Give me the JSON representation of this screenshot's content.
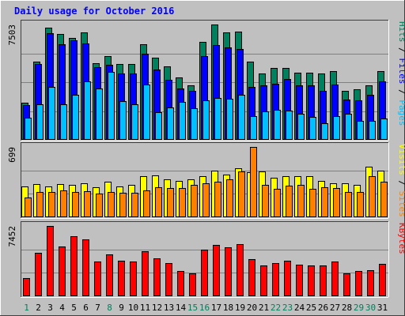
{
  "chart_data": {
    "type": "bar",
    "title": "Daily usage for October 2016",
    "categories": [
      "1",
      "2",
      "3",
      "4",
      "5",
      "6",
      "7",
      "8",
      "9",
      "10",
      "11",
      "12",
      "13",
      "14",
      "15",
      "16",
      "17",
      "18",
      "19",
      "20",
      "21",
      "22",
      "23",
      "24",
      "25",
      "26",
      "27",
      "28",
      "29",
      "30",
      "31"
    ],
    "weekend_days": [
      "1",
      "8",
      "15",
      "16",
      "22",
      "23",
      "29",
      "30"
    ],
    "panels": [
      {
        "name": "hits-files-pages",
        "legend": [
          {
            "label": "Pages",
            "color": "#00C0FF"
          },
          {
            "label": "Files",
            "color": "#0000FF"
          },
          {
            "label": "Hits",
            "color": "#00805C"
          }
        ],
        "legend_separator": " / ",
        "max_label": "7503",
        "max_value": 7503,
        "series": [
          {
            "name": "Hits",
            "color": "#00805C",
            "values": [
              2400,
              5100,
              7300,
              6900,
              6650,
              7000,
              5000,
              5450,
              4950,
              4950,
              6240,
              5350,
              4800,
              4050,
              3550,
              6350,
              7500,
              7000,
              7050,
              5100,
              4300,
              4700,
              4700,
              4350,
              4350,
              4300,
              4450,
              3200,
              3300,
              3550,
              4450
            ]
          },
          {
            "name": "Files",
            "color": "#0000FF",
            "values": [
              2250,
              4950,
              6950,
              6200,
              6500,
              6250,
              4750,
              4900,
              4300,
              4300,
              5600,
              4550,
              3900,
              3350,
              3200,
              5450,
              6150,
              6000,
              5900,
              3450,
              3550,
              3650,
              3950,
              3550,
              3550,
              3200,
              3600,
              2600,
              2550,
              2950,
              3800
            ]
          },
          {
            "name": "Pages",
            "color": "#00C0FF",
            "values": [
              1450,
              2300,
              3450,
              2300,
              2950,
              3800,
              3350,
              4400,
              2500,
              2300,
              3600,
              1800,
              2100,
              2450,
              2050,
              2550,
              2700,
              2650,
              2950,
              1550,
              1850,
              1950,
              1900,
              1700,
              1500,
              1100,
              1550,
              1700,
              1250,
              1250,
              1400
            ]
          }
        ]
      },
      {
        "name": "visits-sites",
        "legend": [
          {
            "label": "Sites",
            "color": "#FF8000"
          },
          {
            "label": "Visits",
            "color": "#FFFF00"
          }
        ],
        "legend_separator": " / ",
        "max_label": "699",
        "max_value": 699,
        "series": [
          {
            "name": "Visits",
            "color": "#FFFF00",
            "values": [
              310,
              330,
              310,
              330,
              320,
              340,
              300,
              350,
              310,
              320,
              410,
              415,
              380,
              360,
              380,
              410,
              465,
              425,
              485,
              445,
              455,
              395,
              410,
              410,
              410,
              360,
              340,
              340,
              325,
              500,
              460
            ]
          },
          {
            "name": "Sites",
            "color": "#FF8000",
            "values": [
              200,
              255,
              250,
              265,
              250,
              260,
              235,
              255,
              245,
              245,
              270,
              300,
              290,
              290,
              320,
              335,
              350,
              375,
              455,
              699,
              320,
              280,
              315,
              320,
              280,
              300,
              290,
              255,
              250,
              410,
              350
            ]
          }
        ]
      },
      {
        "name": "kbytes",
        "legend": [
          {
            "label": "KBytes",
            "color": "#FF0000"
          }
        ],
        "legend_separator": "",
        "max_label": "7452",
        "max_value": 7452,
        "series": [
          {
            "name": "KBytes",
            "color": "#FF0000",
            "values": [
              1900,
              4600,
              7452,
              5300,
              6400,
              6000,
              3700,
              4450,
              3750,
              3700,
              4800,
              4050,
              3550,
              2700,
              2400,
              4950,
              5450,
              5150,
              5550,
              3950,
              3250,
              3500,
              3750,
              3350,
              3250,
              3300,
              3700,
              2400,
              2650,
              2800,
              3450
            ]
          }
        ]
      }
    ]
  },
  "colors": {
    "background": "#C0C0C0",
    "title": "#0000FF",
    "axis_text": "#000000",
    "weekday_label": "#0000FF",
    "weekend_label": "#00805C"
  }
}
